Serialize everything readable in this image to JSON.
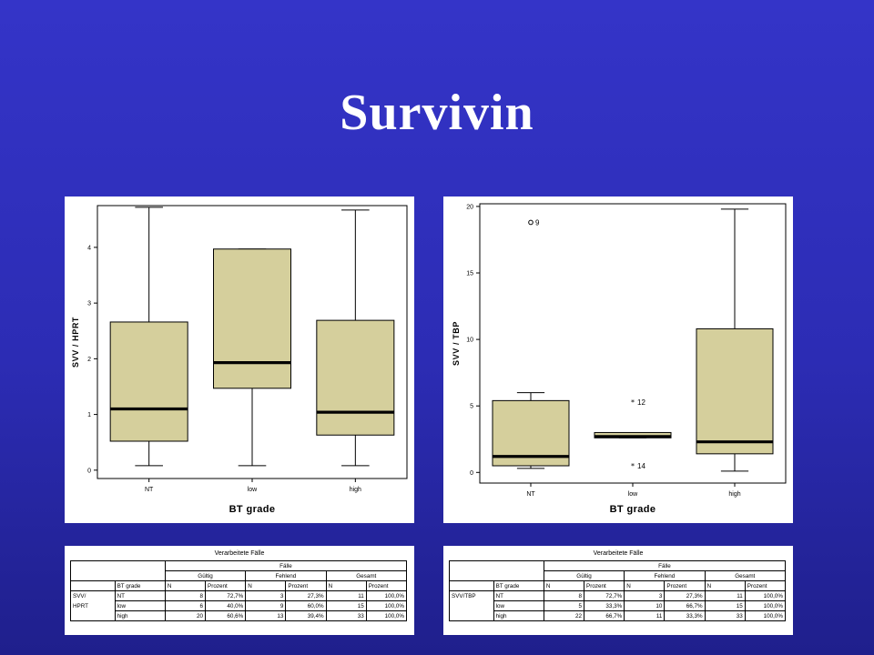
{
  "slide": {
    "title": "Survivin"
  },
  "chart_data": [
    {
      "type": "boxplot",
      "ylabel": "SVV / HPRT",
      "xlabel": "BT grade",
      "ylim": [
        -0.15,
        4.75
      ],
      "yticks": [
        0,
        1,
        2,
        3,
        4
      ],
      "grid": false,
      "categories": [
        "NT",
        "low",
        "high"
      ],
      "boxes": [
        {
          "category": "NT",
          "min": 0.08,
          "q1": 0.52,
          "median": 1.1,
          "q3": 2.66,
          "max": 4.72
        },
        {
          "category": "low",
          "min": 0.08,
          "q1": 1.47,
          "median": 1.93,
          "q3": 3.97,
          "max": 3.97
        },
        {
          "category": "high",
          "min": 0.08,
          "q1": 0.63,
          "median": 1.04,
          "q3": 2.69,
          "max": 4.67
        }
      ],
      "outliers": []
    },
    {
      "type": "boxplot",
      "ylabel": "SVV / TBP",
      "xlabel": "BT grade",
      "ylim": [
        -0.8,
        20.2
      ],
      "yticks": [
        0,
        5,
        10,
        15,
        20
      ],
      "grid": false,
      "categories": [
        "NT",
        "low",
        "high"
      ],
      "boxes": [
        {
          "category": "NT",
          "min": 0.3,
          "q1": 0.5,
          "median": 1.2,
          "q3": 5.4,
          "max": 6.0
        },
        {
          "category": "low",
          "min": 2.6,
          "q1": 2.6,
          "median": 2.7,
          "q3": 3.0,
          "max": 3.0
        },
        {
          "category": "high",
          "min": 0.1,
          "q1": 1.4,
          "median": 2.3,
          "q3": 10.8,
          "max": 19.8
        }
      ],
      "outliers": [
        {
          "category": "NT",
          "value": 18.8,
          "label": "9",
          "marker": "circle"
        },
        {
          "category": "low",
          "value": 5.3,
          "label": "12",
          "marker": "star"
        },
        {
          "category": "low",
          "value": 0.5,
          "label": "14",
          "marker": "star"
        }
      ]
    }
  ],
  "tables": [
    {
      "title": "Verarbeitete Fälle",
      "group_header": "Fälle",
      "col_groups": [
        "Gültig",
        "Fehlend",
        "Gesamt"
      ],
      "sub_headers": [
        "N",
        "Prozent"
      ],
      "var_header": "BT grade",
      "row_group_line1": "SVV/",
      "row_group_line2": "HPRT",
      "rows": [
        {
          "label": "NT",
          "values": [
            "8",
            "72,7%",
            "3",
            "27,3%",
            "11",
            "100,0%"
          ]
        },
        {
          "label": "low",
          "values": [
            "6",
            "40,0%",
            "9",
            "60,0%",
            "15",
            "100,0%"
          ]
        },
        {
          "label": "high",
          "values": [
            "20",
            "60,6%",
            "13",
            "39,4%",
            "33",
            "100,0%"
          ]
        }
      ]
    },
    {
      "title": "Verarbeitete Fälle",
      "group_header": "Fälle",
      "col_groups": [
        "Gültig",
        "Fehlend",
        "Gesamt"
      ],
      "sub_headers": [
        "N",
        "Prozent"
      ],
      "var_header": "BT grade",
      "row_group_line1": "SVV/TBP",
      "row_group_line2": "",
      "rows": [
        {
          "label": "NT",
          "values": [
            "8",
            "72,7%",
            "3",
            "27,3%",
            "11",
            "100,0%"
          ]
        },
        {
          "label": "low",
          "values": [
            "5",
            "33,3%",
            "10",
            "66,7%",
            "15",
            "100,0%"
          ]
        },
        {
          "label": "high",
          "values": [
            "22",
            "66,7%",
            "11",
            "33,3%",
            "33",
            "100,0%"
          ]
        }
      ]
    }
  ],
  "colors": {
    "box_fill": "#d5cf9c",
    "median": "#000000",
    "background": "#3030c0"
  }
}
